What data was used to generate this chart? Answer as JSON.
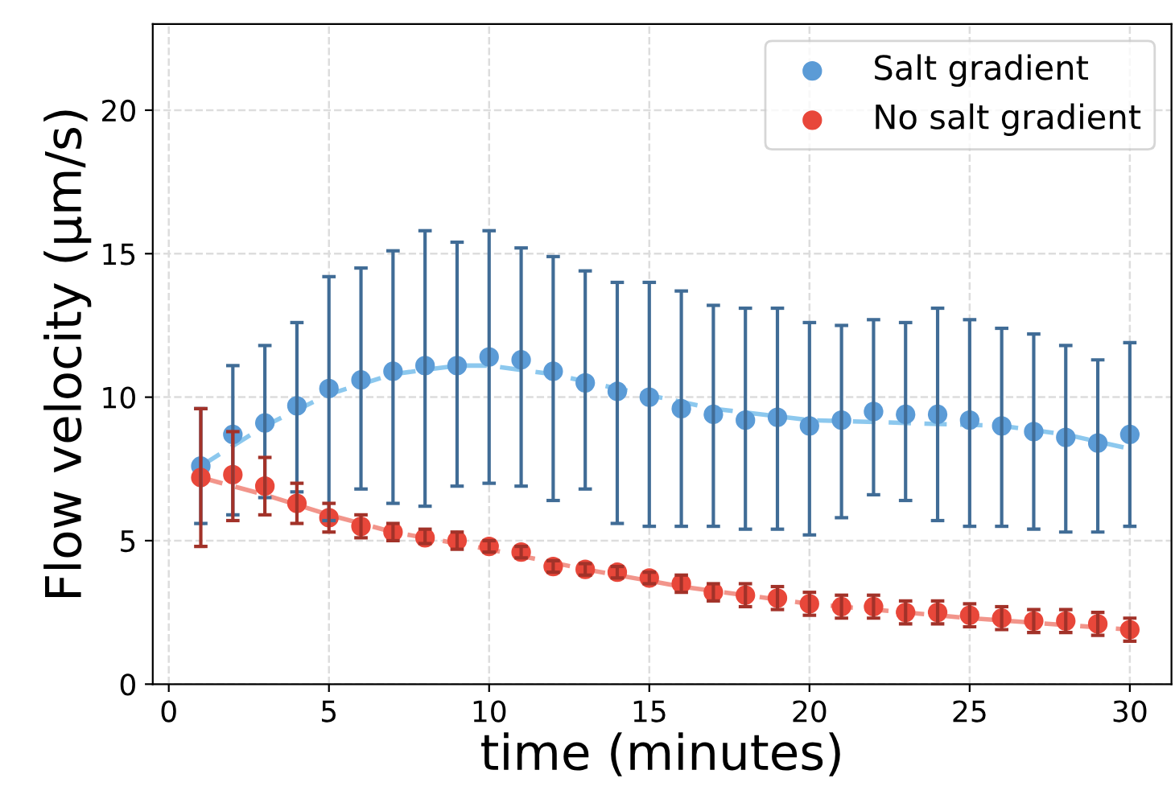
{
  "chart_data": {
    "type": "scatter",
    "xlabel": "time (minutes)",
    "ylabel": "Flow velocity (µm/s)",
    "xlim": [
      -0.5,
      31.3
    ],
    "ylim": [
      0,
      23
    ],
    "xticks": [
      0,
      5,
      10,
      15,
      20,
      25,
      30
    ],
    "yticks": [
      0,
      5,
      10,
      15,
      20
    ],
    "grid": true,
    "legend": "top right",
    "marker": "circle",
    "x": [
      1,
      2,
      3,
      4,
      5,
      6,
      7,
      8,
      9,
      10,
      11,
      12,
      13,
      14,
      15,
      16,
      17,
      18,
      19,
      20,
      21,
      22,
      23,
      24,
      25,
      26,
      27,
      28,
      29,
      30
    ],
    "series": [
      {
        "type": "line",
        "color": "#8cc8ee",
        "line_style": "dashed",
        "marker": "none",
        "x": [
          1,
          3,
          5,
          7,
          9,
          10,
          12,
          14,
          17,
          20,
          23,
          26,
          28,
          30
        ],
        "values": [
          7.6,
          9.0,
          10.1,
          10.8,
          11.1,
          11.1,
          10.8,
          10.3,
          9.6,
          9.2,
          9.1,
          9.0,
          8.7,
          8.2
        ]
      },
      {
        "type": "line",
        "color": "#f2958b",
        "line_style": "dashed",
        "marker": "none",
        "x": [
          1,
          3,
          5,
          7,
          10,
          13,
          16,
          20,
          25,
          30
        ],
        "values": [
          7.2,
          6.6,
          5.9,
          5.3,
          4.7,
          4.0,
          3.4,
          2.8,
          2.3,
          1.9
        ]
      },
      {
        "name": "Salt gradient",
        "color": "#5b9bd6",
        "values": [
          7.6,
          8.7,
          9.1,
          9.7,
          10.3,
          10.6,
          10.9,
          11.1,
          11.1,
          11.4,
          11.3,
          10.9,
          10.5,
          10.2,
          10.0,
          9.6,
          9.4,
          9.2,
          9.3,
          9.0,
          9.2,
          9.5,
          9.4,
          9.4,
          9.2,
          9.0,
          8.8,
          8.6,
          8.4,
          8.7
        ],
        "errors": [
          [
            5.6,
            9.6
          ],
          [
            5.9,
            11.1
          ],
          [
            6.5,
            11.8
          ],
          [
            6.7,
            12.6
          ],
          [
            5.7,
            14.2
          ],
          [
            6.8,
            14.5
          ],
          [
            6.3,
            15.1
          ],
          [
            6.2,
            15.8
          ],
          [
            6.9,
            15.4
          ],
          [
            7.0,
            15.8
          ],
          [
            6.9,
            15.2
          ],
          [
            6.4,
            14.9
          ],
          [
            6.8,
            14.4
          ],
          [
            5.6,
            14.0
          ],
          [
            5.5,
            14.0
          ],
          [
            5.5,
            13.7
          ],
          [
            5.5,
            13.2
          ],
          [
            5.4,
            13.1
          ],
          [
            5.4,
            13.1
          ],
          [
            5.2,
            12.6
          ],
          [
            5.8,
            12.5
          ],
          [
            6.6,
            12.7
          ],
          [
            6.4,
            12.6
          ],
          [
            5.7,
            13.1
          ],
          [
            5.5,
            12.7
          ],
          [
            5.5,
            12.4
          ],
          [
            5.4,
            12.2
          ],
          [
            5.3,
            11.8
          ],
          [
            5.3,
            11.3
          ],
          [
            5.5,
            11.9
          ]
        ]
      },
      {
        "name": "No salt gradient",
        "color": "#e8473a",
        "values": [
          7.2,
          7.3,
          6.9,
          6.3,
          5.8,
          5.5,
          5.3,
          5.1,
          5.0,
          4.8,
          4.6,
          4.1,
          4.0,
          3.9,
          3.7,
          3.5,
          3.2,
          3.1,
          3.0,
          2.8,
          2.7,
          2.7,
          2.5,
          2.5,
          2.4,
          2.3,
          2.2,
          2.2,
          2.1,
          1.9
        ],
        "errors": [
          [
            4.8,
            9.6
          ],
          [
            5.7,
            8.8
          ],
          [
            5.9,
            7.9
          ],
          [
            5.6,
            7.0
          ],
          [
            5.3,
            6.3
          ],
          [
            5.1,
            5.9
          ],
          [
            5.0,
            5.6
          ],
          [
            4.9,
            5.4
          ],
          [
            4.7,
            5.3
          ],
          [
            4.6,
            5.0
          ],
          [
            4.4,
            4.8
          ],
          [
            3.9,
            4.3
          ],
          [
            3.8,
            4.2
          ],
          [
            3.7,
            4.1
          ],
          [
            3.5,
            3.9
          ],
          [
            3.2,
            3.8
          ],
          [
            2.9,
            3.5
          ],
          [
            2.7,
            3.5
          ],
          [
            2.6,
            3.4
          ],
          [
            2.4,
            3.2
          ],
          [
            2.3,
            3.1
          ],
          [
            2.3,
            3.1
          ],
          [
            2.1,
            2.9
          ],
          [
            2.1,
            2.9
          ],
          [
            2.0,
            2.8
          ],
          [
            1.9,
            2.7
          ],
          [
            1.8,
            2.6
          ],
          [
            1.8,
            2.6
          ],
          [
            1.7,
            2.5
          ],
          [
            1.5,
            2.3
          ]
        ]
      }
    ]
  }
}
